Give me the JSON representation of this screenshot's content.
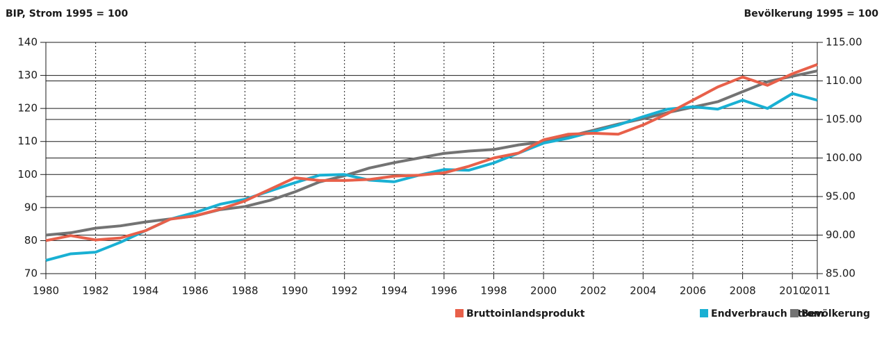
{
  "chart_data": {
    "type": "line",
    "y_label": "BIP, Strom 1995 = 100",
    "y2_label": "Bevölkerung 1995 = 100",
    "x": [
      1980,
      1981,
      1982,
      1983,
      1984,
      1985,
      1986,
      1987,
      1988,
      1989,
      1990,
      1991,
      1992,
      1993,
      1994,
      1995,
      1996,
      1997,
      1998,
      1999,
      2000,
      2001,
      2002,
      2003,
      2004,
      2005,
      2006,
      2007,
      2008,
      2009,
      2010,
      2011
    ],
    "xlim": [
      1980,
      2011
    ],
    "xticks": [
      1980,
      1982,
      1984,
      1986,
      1988,
      1990,
      1992,
      1994,
      1996,
      1998,
      2000,
      2002,
      2004,
      2006,
      2008,
      2010,
      2011
    ],
    "ylim": [
      70,
      140
    ],
    "yticks": [
      70,
      80,
      90,
      100,
      110,
      120,
      130,
      140
    ],
    "y2lim": [
      85,
      115
    ],
    "y2ticks": [
      {
        "value": 85,
        "label": "85.00"
      },
      {
        "value": 90,
        "label": "90.00"
      },
      {
        "value": 95,
        "label": "95.00"
      },
      {
        "value": 100,
        "label": "100.00"
      },
      {
        "value": 105,
        "label": "105.00"
      },
      {
        "value": 110,
        "label": "110.00"
      },
      {
        "value": 115,
        "label": "115.00"
      }
    ],
    "grid": true,
    "legend": "bottom-right",
    "series": [
      {
        "name": "Bruttoinlandsprodukt",
        "color": "#e8604a",
        "values": [
          80,
          81.5,
          80.2,
          80.8,
          83,
          86.5,
          87.5,
          89.5,
          92,
          95.5,
          99,
          98.2,
          98.2,
          98.5,
          99.5,
          99.8,
          100.5,
          102.5,
          105,
          106.5,
          110.5,
          112.2,
          112.5,
          112.2,
          115,
          118.5,
          122.5,
          126.5,
          129.5,
          127,
          130.5,
          133.3
        ]
      },
      {
        "name": "Endverbrauch Strom",
        "color": "#19b0d3",
        "values": [
          74,
          76,
          76.5,
          79.5,
          83,
          86.5,
          88.5,
          91,
          92.5,
          95,
          97.5,
          99.8,
          100,
          98.3,
          97.8,
          99.8,
          101.5,
          101.3,
          103.5,
          106.5,
          109.5,
          111,
          113,
          115,
          117.5,
          119.8,
          120.5,
          119.8,
          122.5,
          120,
          124.5,
          122.5
        ]
      },
      {
        "name": "Bevölkerung",
        "color": "#737373",
        "axis": "y2",
        "values": [
          90,
          90.3,
          90.9,
          91.2,
          91.7,
          92.1,
          92.5,
          93.3,
          93.7,
          94.5,
          95.6,
          96.9,
          97.7,
          98.7,
          99.4,
          100,
          100.6,
          100.9,
          101.1,
          101.7,
          102.1,
          102.8,
          103.6,
          104.4,
          105.1,
          105.9,
          106.6,
          107.3,
          108.6,
          109.9,
          110.6,
          111.3
        ]
      }
    ]
  }
}
